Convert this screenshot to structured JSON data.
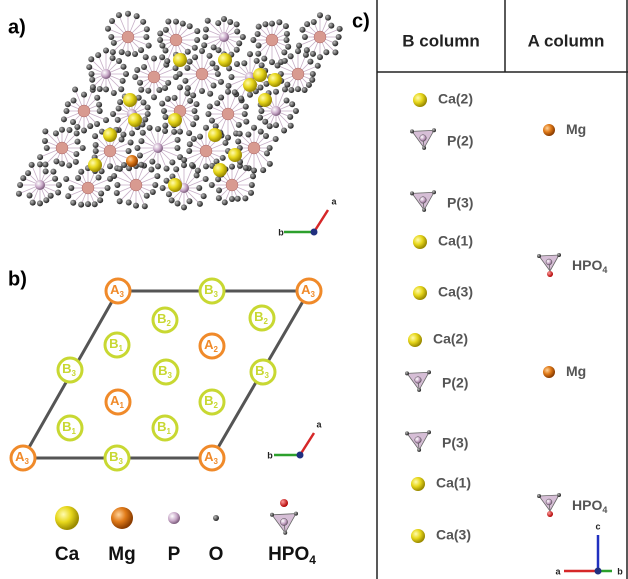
{
  "panels": {
    "a": "a)",
    "b": "b)",
    "c": "c)"
  },
  "axes": {
    "a": "a",
    "b": "b",
    "c": "c"
  },
  "lattice": [
    {
      "letter": "A",
      "sub": "3"
    },
    {
      "letter": "B",
      "sub": "3"
    },
    {
      "letter": "A",
      "sub": "3"
    },
    {
      "letter": "B",
      "sub": "2"
    },
    {
      "letter": "B",
      "sub": "2"
    },
    {
      "letter": "B",
      "sub": "1"
    },
    {
      "letter": "A",
      "sub": "2"
    },
    {
      "letter": "B",
      "sub": "3"
    },
    {
      "letter": "B",
      "sub": "3"
    },
    {
      "letter": "B",
      "sub": "3"
    },
    {
      "letter": "A",
      "sub": "1"
    },
    {
      "letter": "B",
      "sub": "2"
    },
    {
      "letter": "B",
      "sub": "1"
    },
    {
      "letter": "B",
      "sub": "1"
    },
    {
      "letter": "A",
      "sub": "3"
    },
    {
      "letter": "B",
      "sub": "3"
    },
    {
      "letter": "A",
      "sub": "3"
    }
  ],
  "legend": [
    {
      "main": "Ca"
    },
    {
      "main": "Mg"
    },
    {
      "main": "P"
    },
    {
      "main": "O"
    },
    {
      "main": "HPO",
      "sub": "4"
    }
  ],
  "table": {
    "headers": [
      "B column",
      "A column"
    ],
    "b_column": [
      "Ca(2)",
      "P(2)",
      "P(3)",
      "Ca(1)",
      "Ca(3)",
      "Ca(2)",
      "P(2)",
      "P(3)",
      "Ca(1)",
      "Ca(3)"
    ],
    "a_column": [
      {
        "main": "Mg"
      },
      {
        "main": "HPO",
        "sub": "4"
      },
      {
        "main": "Mg"
      },
      {
        "main": "HPO",
        "sub": "4"
      }
    ]
  }
}
